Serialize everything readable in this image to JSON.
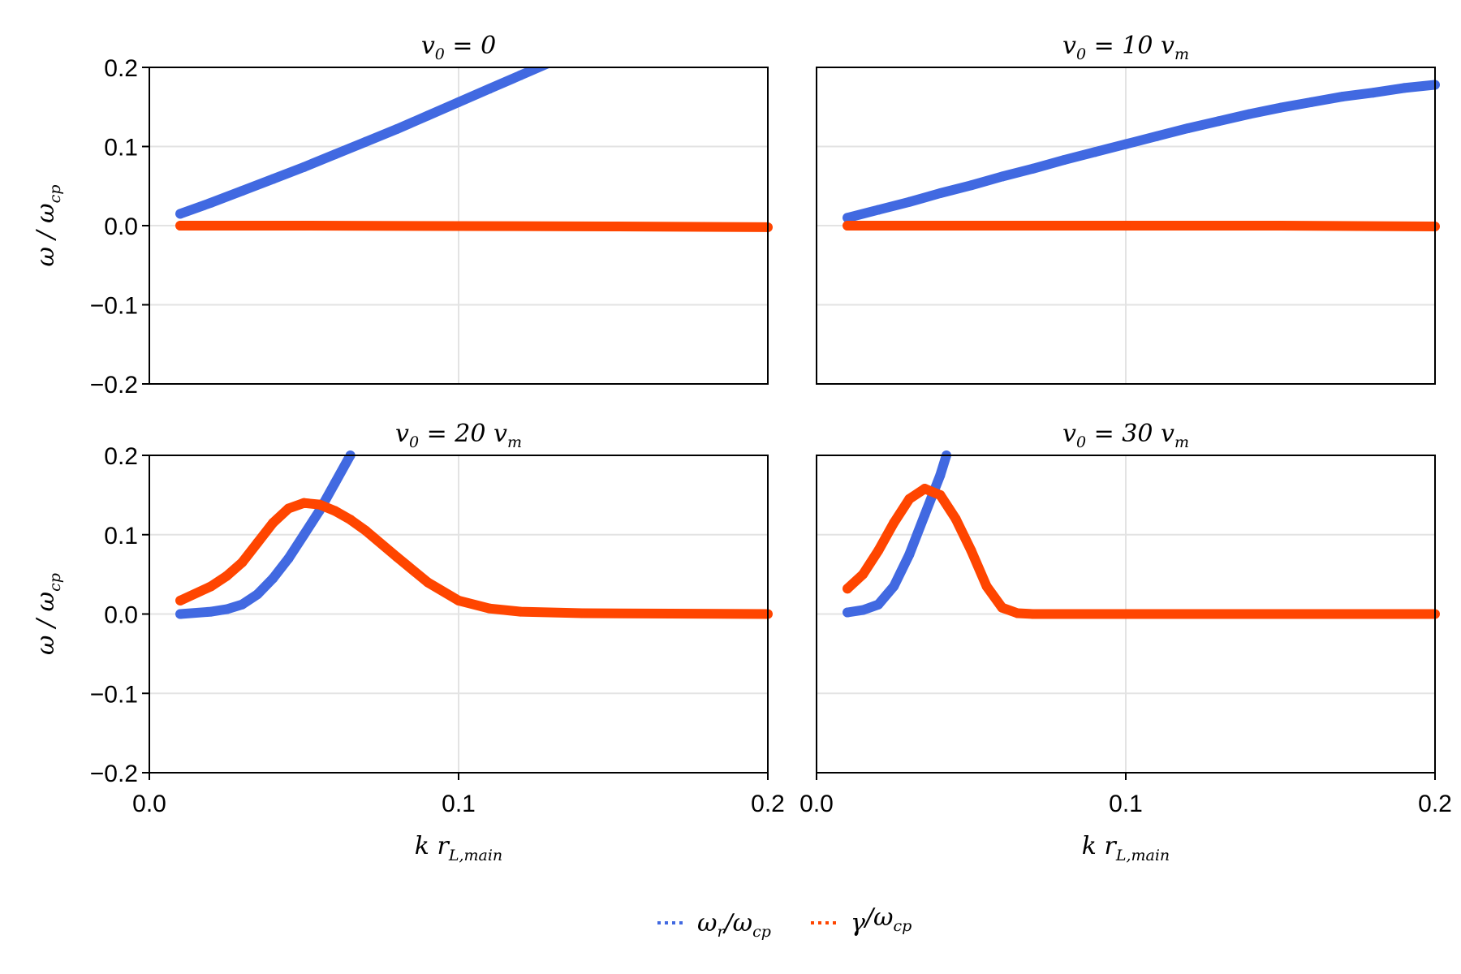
{
  "chart_data": [
    {
      "type": "scatter",
      "title": {
        "var": "v",
        "sub": "0",
        "rest": " = 0",
        "unit": "",
        "unit_sub": ""
      },
      "xlim": [
        0.0,
        0.2
      ],
      "ylim": [
        -0.2,
        0.2
      ],
      "xticks": [
        "0.0",
        "0.1",
        "0.2"
      ],
      "yticks": [
        "-0.2",
        "-0.1",
        "0.0",
        "0.1",
        "0.2"
      ],
      "series": [
        {
          "key": "omega_r",
          "color": "#4169E1",
          "x": [
            0.01,
            0.02,
            0.03,
            0.04,
            0.05,
            0.06,
            0.07,
            0.08,
            0.09,
            0.1,
            0.11,
            0.12,
            0.13
          ],
          "y": [
            0.015,
            0.029,
            0.044,
            0.059,
            0.074,
            0.09,
            0.106,
            0.122,
            0.139,
            0.156,
            0.173,
            0.19,
            0.207
          ]
        },
        {
          "key": "gamma",
          "color": "#FF4500",
          "x": [
            0.01,
            0.05,
            0.1,
            0.15,
            0.2
          ],
          "y": [
            0.0,
            0.0,
            -0.0005,
            -0.001,
            -0.002
          ]
        }
      ]
    },
    {
      "type": "scatter",
      "title": {
        "var": "v",
        "sub": "0",
        "rest": " = 10 ",
        "unit": "v",
        "unit_sub": "m"
      },
      "xlim": [
        0.0,
        0.2
      ],
      "ylim": [
        -0.2,
        0.2
      ],
      "xticks": [
        "0.0",
        "0.1",
        "0.2"
      ],
      "yticks": [
        "-0.2",
        "-0.1",
        "0.0",
        "0.1",
        "0.2"
      ],
      "series": [
        {
          "key": "omega_r",
          "color": "#4169E1",
          "x": [
            0.01,
            0.02,
            0.03,
            0.04,
            0.05,
            0.06,
            0.07,
            0.08,
            0.09,
            0.1,
            0.11,
            0.12,
            0.13,
            0.14,
            0.15,
            0.16,
            0.17,
            0.18,
            0.19,
            0.2
          ],
          "y": [
            0.01,
            0.02,
            0.03,
            0.041,
            0.051,
            0.062,
            0.072,
            0.083,
            0.093,
            0.103,
            0.113,
            0.123,
            0.132,
            0.141,
            0.149,
            0.156,
            0.163,
            0.168,
            0.174,
            0.178
          ]
        },
        {
          "key": "gamma",
          "color": "#FF4500",
          "x": [
            0.01,
            0.1,
            0.15,
            0.2
          ],
          "y": [
            0.0,
            0.0,
            0.0,
            -0.001
          ]
        }
      ]
    },
    {
      "type": "scatter",
      "title": {
        "var": "v",
        "sub": "0",
        "rest": " = 20 ",
        "unit": "v",
        "unit_sub": "m"
      },
      "xlim": [
        0.0,
        0.2
      ],
      "ylim": [
        -0.2,
        0.2
      ],
      "xticks": [
        "0.0",
        "0.1",
        "0.2"
      ],
      "yticks": [
        "-0.2",
        "-0.1",
        "0.0",
        "0.1",
        "0.2"
      ],
      "series": [
        {
          "key": "omega_r",
          "color": "#4169E1",
          "x": [
            0.01,
            0.02,
            0.025,
            0.03,
            0.035,
            0.04,
            0.045,
            0.05,
            0.055,
            0.06,
            0.065
          ],
          "y": [
            0.0,
            0.003,
            0.006,
            0.012,
            0.025,
            0.045,
            0.07,
            0.1,
            0.13,
            0.165,
            0.2
          ]
        },
        {
          "key": "gamma",
          "color": "#FF4500",
          "x": [
            0.01,
            0.02,
            0.025,
            0.03,
            0.035,
            0.04,
            0.045,
            0.05,
            0.055,
            0.06,
            0.065,
            0.07,
            0.08,
            0.09,
            0.1,
            0.11,
            0.12,
            0.14,
            0.2
          ],
          "y": [
            0.017,
            0.035,
            0.048,
            0.065,
            0.09,
            0.115,
            0.133,
            0.14,
            0.138,
            0.13,
            0.119,
            0.105,
            0.072,
            0.04,
            0.017,
            0.007,
            0.003,
            0.001,
            0.0
          ]
        }
      ]
    },
    {
      "type": "scatter",
      "title": {
        "var": "v",
        "sub": "0",
        "rest": " = 30 ",
        "unit": "v",
        "unit_sub": "m"
      },
      "xlim": [
        0.0,
        0.2
      ],
      "ylim": [
        -0.2,
        0.2
      ],
      "xticks": [
        "0.0",
        "0.1",
        "0.2"
      ],
      "yticks": [
        "-0.2",
        "-0.1",
        "0.0",
        "0.1",
        "0.2"
      ],
      "series": [
        {
          "key": "omega_r",
          "color": "#4169E1",
          "x": [
            0.01,
            0.015,
            0.02,
            0.025,
            0.03,
            0.035,
            0.04,
            0.042
          ],
          "y": [
            0.002,
            0.005,
            0.012,
            0.035,
            0.075,
            0.125,
            0.175,
            0.2
          ]
        },
        {
          "key": "gamma",
          "color": "#FF4500",
          "x": [
            0.01,
            0.015,
            0.02,
            0.025,
            0.03,
            0.035,
            0.04,
            0.045,
            0.05,
            0.055,
            0.06,
            0.065,
            0.07,
            0.2
          ],
          "y": [
            0.032,
            0.05,
            0.08,
            0.115,
            0.145,
            0.158,
            0.15,
            0.12,
            0.08,
            0.035,
            0.008,
            0.001,
            0.0,
            0.0
          ]
        }
      ]
    }
  ],
  "axes": {
    "ylabel": {
      "a": "ω",
      "sep": " / ",
      "b": "ω",
      "b_sub": "cp"
    },
    "xlabel": {
      "a": "k r",
      "a_sub": "L,main"
    }
  },
  "legend": [
    {
      "key": "omega_r",
      "a": "ω",
      "a_sub": "r",
      "sep": "/",
      "b": "ω",
      "b_sub": "cp",
      "color": "#4169E1"
    },
    {
      "key": "gamma",
      "a": "γ",
      "a_sub": "",
      "sep": "/",
      "b": "ω",
      "b_sub": "cp",
      "color": "#FF4500"
    }
  ]
}
